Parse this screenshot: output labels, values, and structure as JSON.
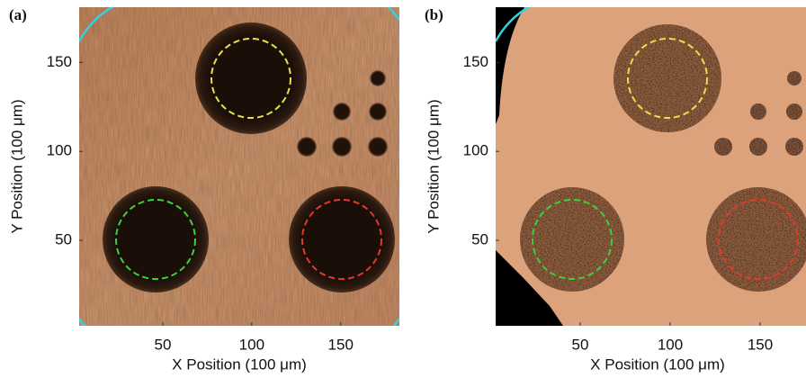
{
  "chart_data": [
    {
      "type": "image",
      "panel_label": "(a)",
      "xlabel": "X Position (100 μm)",
      "ylabel": "Y Position (100 μm)",
      "xlim": [
        3,
        183
      ],
      "ylim": [
        2,
        181
      ],
      "xticks": [
        50,
        100,
        150
      ],
      "yticks": [
        50,
        100,
        150
      ]
    },
    {
      "type": "image",
      "panel_label": "(b)",
      "xlabel": "X Position (100 μm)",
      "ylabel": "Y Position (100 μm)",
      "xlim": [
        3,
        183
      ],
      "ylim": [
        2,
        181
      ],
      "xticks": [
        50,
        100,
        150
      ],
      "yticks": [
        50,
        100,
        150
      ]
    }
  ]
}
